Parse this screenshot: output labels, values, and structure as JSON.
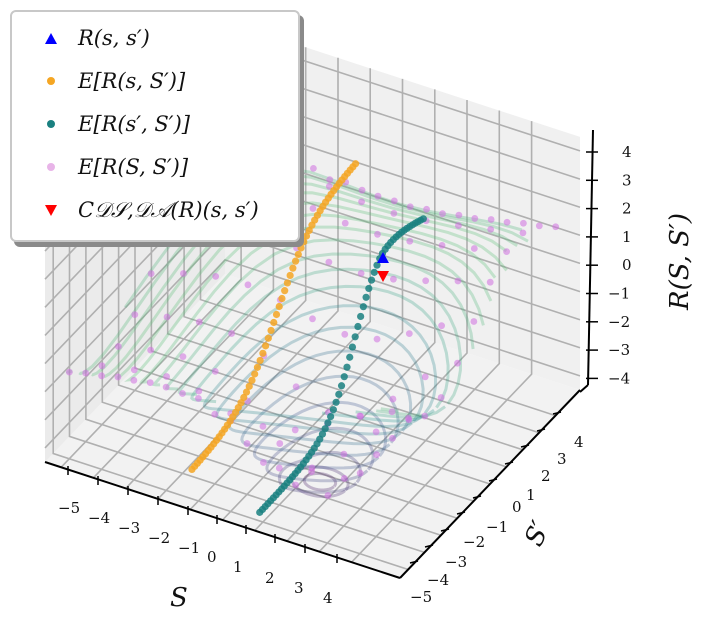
{
  "chart_data": {
    "type": "scatter3d",
    "title": "",
    "xlabel": "S",
    "ylabel": "S'",
    "zlabel": "R(S, S')",
    "xlim": [
      -5,
      5
    ],
    "ylim": [
      -5,
      5
    ],
    "zlim": [
      -4.5,
      4.5
    ],
    "x_ticks": [
      "-5",
      "-4",
      "-3",
      "-2",
      "-1",
      "0",
      "1",
      "2",
      "3",
      "4"
    ],
    "y_ticks": [
      "-5",
      "-4",
      "-3",
      "-2",
      "-1",
      "0",
      "1",
      "2",
      "3",
      "4"
    ],
    "z_ticks": [
      "-4",
      "-3",
      "-2",
      "-1",
      "0",
      "1",
      "2",
      "3",
      "4"
    ],
    "grid": true,
    "legend_position": "upper left",
    "surface": "contour lines of R(S,S') (viridis colormap, semi-transparent) — a saddle/trough shaped surface with a minimum near S'≈-2",
    "series": [
      {
        "name": "R(s, s')",
        "marker": "triangle-up",
        "color": "#0000ff",
        "points": [
          {
            "S": 0.5,
            "S_prime": 1.5,
            "R": 0.3
          }
        ]
      },
      {
        "name": "E[R(s, S')]",
        "marker": "circle",
        "color": "#ffa500",
        "description": "curve over S' at fixed s=0.5; runs from R≈-3.5 at S'=-5 up to R≈1.4 at S'=5"
      },
      {
        "name": "E[R(s', S')]",
        "marker": "circle",
        "color": "#008080",
        "description": "curve over S' at fixed s'=1.5; runs from R≈-4.2 up to peak ≈1 then to ≈0"
      },
      {
        "name": "E[R(S, S')]",
        "marker": "circle",
        "color": "#ee82ee",
        "description": "grid of samples over S, S' in [-5,5] lying on the surface"
      },
      {
        "name": "C_{D_S, D_A}(R)(s, s')",
        "marker": "triangle-down",
        "color": "#ff0000",
        "points": [
          {
            "S": 0.5,
            "S_prime": 1.5,
            "R": -0.4
          }
        ]
      }
    ]
  },
  "legend": {
    "items": [
      {
        "label": "R(s, s′)",
        "marker": "triangle-up",
        "color": "#0000ff"
      },
      {
        "label": "E[R(s, S′)]",
        "marker": "dot",
        "color": "#f5a623"
      },
      {
        "label": "E[R(s′, S′)]",
        "marker": "dot",
        "color": "#1a8080"
      },
      {
        "label": "E[R(S, S′)]",
        "marker": "dot",
        "color": "#e8b4e8"
      },
      {
        "label": "C𝒟𝒮,𝒟𝒜(R)(s, s′)",
        "marker": "triangle-down",
        "color": "#ff0000"
      }
    ]
  },
  "axes": {
    "x_label": "S",
    "y_label": "S′",
    "z_label": "R(S, S′)",
    "x_ticks": [
      "−5",
      "−4",
      "−3",
      "−2",
      "−1",
      "0",
      "1",
      "2",
      "3",
      "4"
    ],
    "y_ticks": [
      "−5",
      "−4",
      "−3",
      "−2",
      "−1",
      "0",
      "1",
      "2",
      "3",
      "4"
    ],
    "z_ticks": [
      "4",
      "3",
      "2",
      "1",
      "0",
      "−1",
      "−2",
      "−3",
      "−4"
    ]
  }
}
